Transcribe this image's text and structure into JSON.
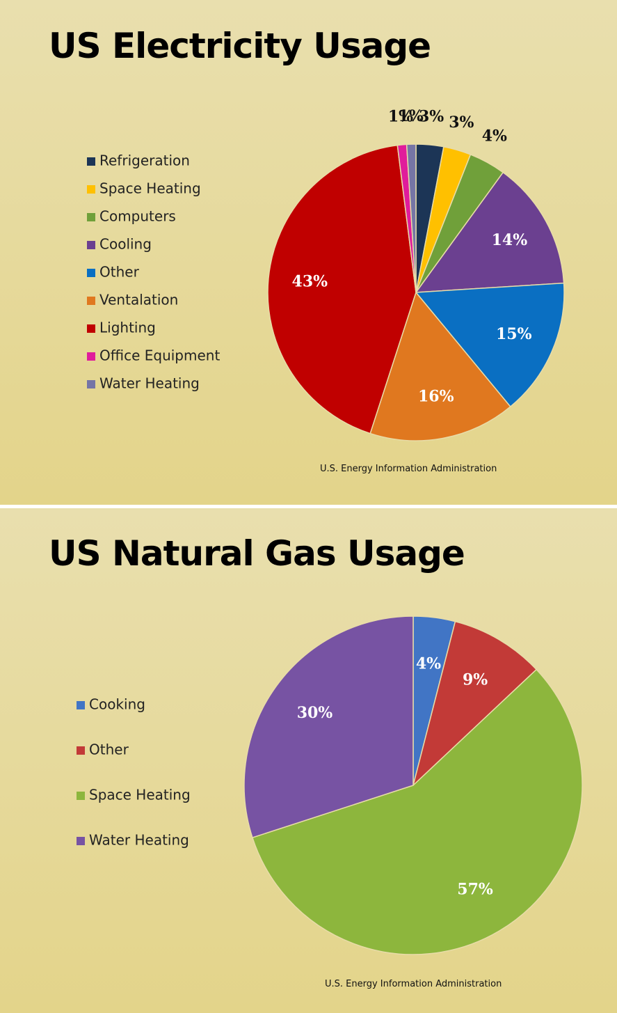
{
  "chart_data": [
    {
      "type": "pie",
      "title": "US Electricity Usage",
      "categories": [
        "Refrigeration",
        "Space Heating",
        "Computers",
        "Cooling",
        "Other",
        "Ventalation",
        "Lighting",
        "Office Equipment",
        "Water Heating"
      ],
      "values": [
        3,
        3,
        4,
        14,
        15,
        16,
        43,
        1,
        1
      ],
      "value_labels": [
        "3%",
        "3%",
        "4%",
        "14%",
        "15%",
        "16%",
        "43%",
        "1%",
        "1%"
      ],
      "colors": [
        "#1c3556",
        "#ffc000",
        "#70a03a",
        "#6b4090",
        "#0a6fc2",
        "#e0781f",
        "#c00000",
        "#e01c9b",
        "#7575a6"
      ],
      "source": "U.S. Energy  Information Administration"
    },
    {
      "type": "pie",
      "title": "US Natural Gas Usage",
      "categories": [
        "Cooking",
        "Other",
        "Space Heating",
        "Water Heating"
      ],
      "values": [
        4,
        9,
        57,
        30
      ],
      "value_labels": [
        "4%",
        "9%",
        "57%",
        "30%"
      ],
      "colors": [
        "#4175c5",
        "#c23a37",
        "#8db63d",
        "#7753a3"
      ],
      "source": "U.S. Energy  Information Administration"
    }
  ]
}
